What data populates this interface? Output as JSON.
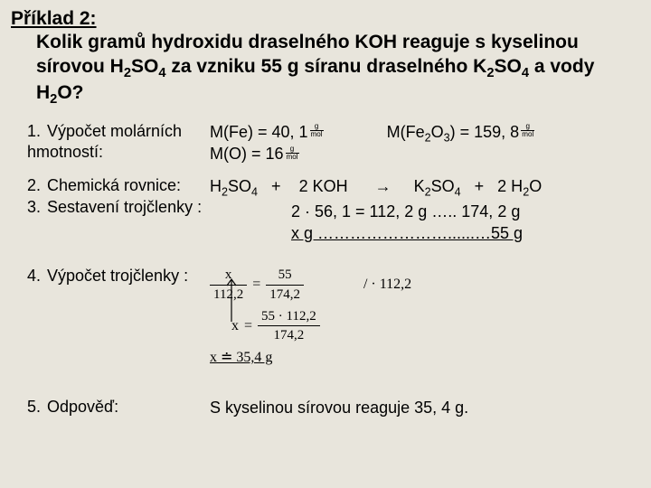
{
  "background_color": "#e8e5dc",
  "title": {
    "label": "Příklad 2:",
    "text_html": "Kolik gramů hydroxidu draselného KOH reaguje s kyselinou sírovou H<sub>2</sub>SO<sub>4</sub>  za vzniku 55 g síranu draselného K<sub>2</sub>SO<sub>4</sub> a vody H<sub>2</sub>O?"
  },
  "steps": {
    "s1": {
      "num": "1.",
      "label": "Výpočet molárních hmotností:"
    },
    "s2": {
      "num": "2.",
      "label": "Chemická rovnice:"
    },
    "s3": {
      "num": "3.",
      "label": "Sestavení trojčlenky :"
    },
    "s4": {
      "num": "4.",
      "label": "Výpočet trojčlenky :"
    },
    "s5": {
      "num": "5.",
      "label": "Odpověď:"
    }
  },
  "molar": {
    "m_fe": "M(Fe) = 40, 1",
    "m_o": "M(O) = 16",
    "m_fe2o3_html": "M(Fe<sub>2</sub>O<sub>3</sub>)  = 159, 8",
    "unit_top": "g",
    "unit_bot": "mol"
  },
  "equation": {
    "line1_html": "H<sub>2</sub>SO<sub>4</sub>   +    2 KOH      →     K<sub>2</sub>SO<sub>4</sub>   +   2 H<sub>2</sub>O",
    "line2": "2 · 56, 1 = 112, 2 g ….. 174, 2 g",
    "line3": "x g ……………………......…55 g"
  },
  "calc": {
    "l1_lhs_top": "x",
    "l1_lhs_bot": "112,2",
    "l1_rhs_top": "55",
    "l1_rhs_bot": "174,2",
    "l1_note": "/ · 112,2",
    "l2_rhs_top": "55 · 112,2",
    "l2_rhs_bot": "174,2",
    "l3": "x ≐ 35,4 g"
  },
  "answer": "S kyselinou sírovou reaguje 35, 4 g."
}
